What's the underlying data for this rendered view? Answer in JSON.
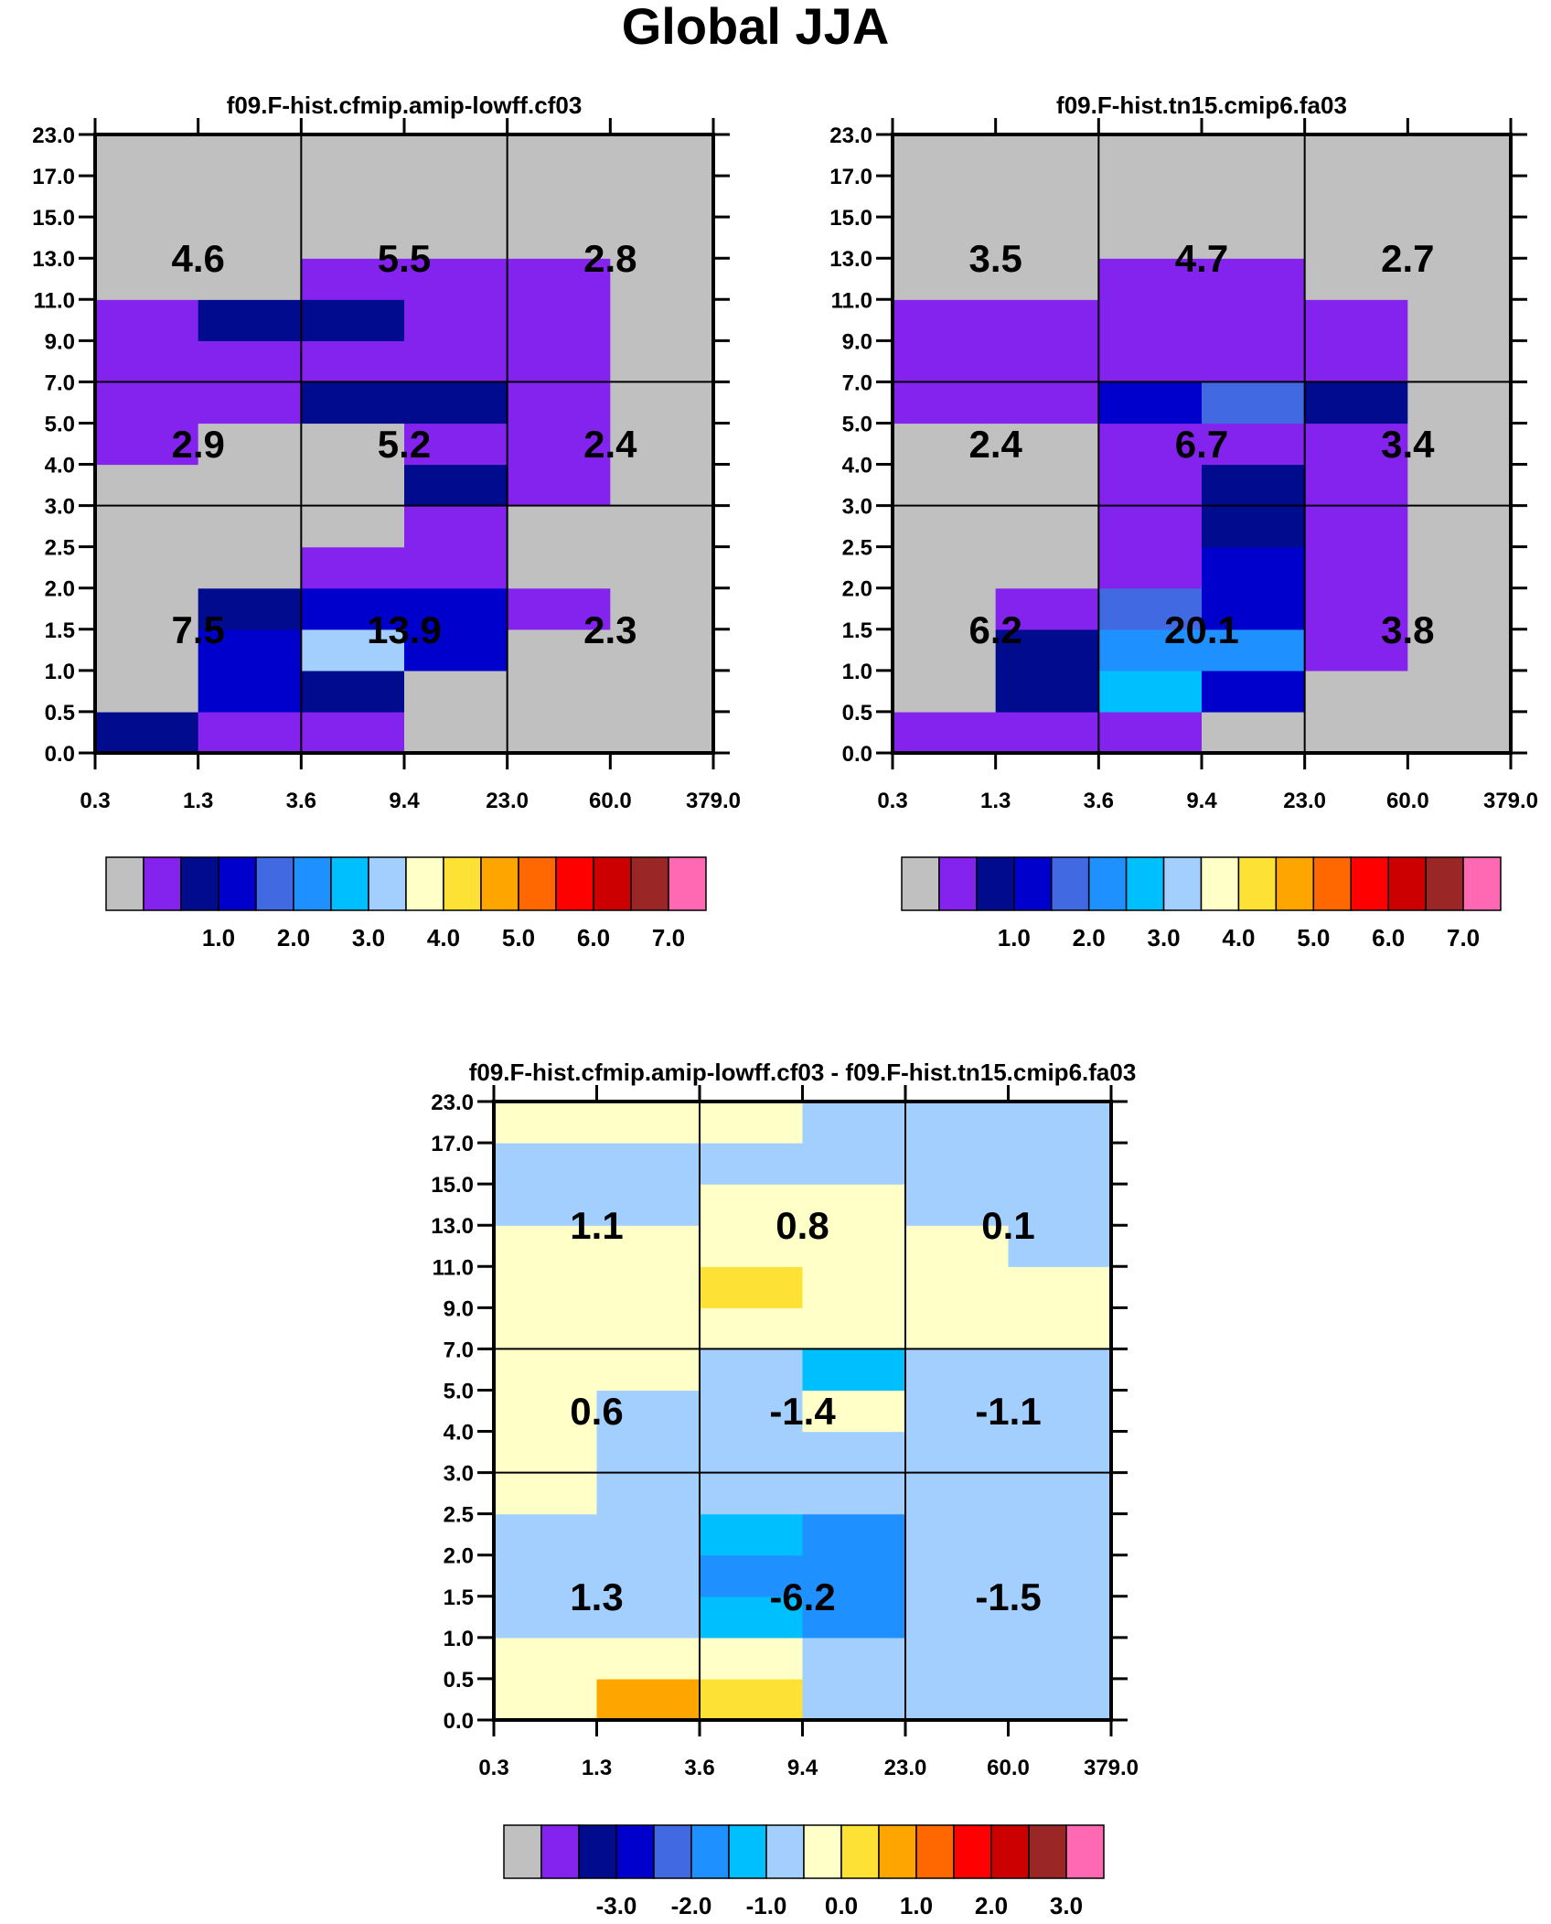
{
  "title": "Global JJA",
  "colorbar_colors": [
    "#c0c0c0",
    "#8422ee",
    "#000b8e",
    "#0000cd",
    "#4169e1",
    "#1e90ff",
    "#00bfff",
    "#a3cfff",
    "#ffffc8",
    "#fde235",
    "#ffa500",
    "#ff6700",
    "#ff0000",
    "#cd0000",
    "#9b2626",
    "#ff69b4"
  ],
  "chart_data": [
    {
      "type": "heatmap",
      "title": "f09.F-hist.cfmip.amip-lowff.cf03",
      "xticklabels": [
        "0.3",
        "1.3",
        "3.6",
        "9.4",
        "23.0",
        "60.0",
        "379.0"
      ],
      "yticklabels": [
        "0.0",
        "0.5",
        "1.0",
        "1.5",
        "2.0",
        "2.5",
        "3.0",
        "4.0",
        "5.0",
        "7.0",
        "9.0",
        "11.0",
        "13.0",
        "15.0",
        "17.0",
        "23.0"
      ],
      "grid": true,
      "cells": [
        [
          2,
          1,
          1,
          0,
          0,
          0
        ],
        [
          0,
          3,
          2,
          0,
          0,
          0
        ],
        [
          0,
          3,
          7,
          3,
          0,
          0
        ],
        [
          0,
          2,
          3,
          3,
          1,
          0
        ],
        [
          0,
          0,
          1,
          1,
          0,
          0
        ],
        [
          0,
          0,
          0,
          1,
          0,
          0
        ],
        [
          0,
          0,
          0,
          2,
          1,
          0
        ],
        [
          1,
          0,
          0,
          1,
          1,
          0
        ],
        [
          1,
          1,
          2,
          2,
          1,
          0
        ],
        [
          1,
          1,
          1,
          1,
          1,
          0
        ],
        [
          1,
          2,
          2,
          1,
          1,
          0
        ],
        [
          0,
          0,
          1,
          1,
          1,
          0
        ],
        [
          0,
          0,
          0,
          0,
          0,
          0
        ],
        [
          0,
          0,
          0,
          0,
          0,
          0
        ],
        [
          0,
          0,
          0,
          0,
          0,
          0
        ]
      ],
      "bin_labels": [
        "7.5",
        "13.9",
        "2.3",
        "2.9",
        "5.2",
        "2.4",
        "4.6",
        "5.5",
        "2.8"
      ],
      "colorbar": {
        "labels": [
          "1.0",
          "2.0",
          "3.0",
          "4.0",
          "5.0",
          "6.0",
          "7.0"
        ]
      }
    },
    {
      "type": "heatmap",
      "title": "f09.F-hist.tn15.cmip6.fa03",
      "xticklabels": [
        "0.3",
        "1.3",
        "3.6",
        "9.4",
        "23.0",
        "60.0",
        "379.0"
      ],
      "yticklabels": [
        "0.0",
        "0.5",
        "1.0",
        "1.5",
        "2.0",
        "2.5",
        "3.0",
        "4.0",
        "5.0",
        "7.0",
        "9.0",
        "11.0",
        "13.0",
        "15.0",
        "17.0",
        "23.0"
      ],
      "grid": true,
      "cells": [
        [
          1,
          1,
          1,
          0,
          0,
          0
        ],
        [
          0,
          2,
          6,
          3,
          0,
          0
        ],
        [
          0,
          2,
          5,
          5,
          1,
          0
        ],
        [
          0,
          1,
          4,
          3,
          1,
          0
        ],
        [
          0,
          0,
          1,
          3,
          1,
          0
        ],
        [
          0,
          0,
          1,
          2,
          1,
          0
        ],
        [
          0,
          0,
          1,
          2,
          1,
          0
        ],
        [
          0,
          0,
          1,
          1,
          1,
          0
        ],
        [
          1,
          1,
          3,
          4,
          2,
          0
        ],
        [
          1,
          1,
          1,
          1,
          1,
          0
        ],
        [
          1,
          1,
          1,
          1,
          1,
          0
        ],
        [
          0,
          0,
          1,
          1,
          0,
          0
        ],
        [
          0,
          0,
          0,
          0,
          0,
          0
        ],
        [
          0,
          0,
          0,
          0,
          0,
          0
        ],
        [
          0,
          0,
          0,
          0,
          0,
          0
        ]
      ],
      "bin_labels": [
        "6.2",
        "20.1",
        "3.8",
        "2.4",
        "6.7",
        "3.4",
        "3.5",
        "4.7",
        "2.7"
      ],
      "colorbar": {
        "labels": [
          "1.0",
          "2.0",
          "3.0",
          "4.0",
          "5.0",
          "6.0",
          "7.0"
        ]
      }
    },
    {
      "type": "heatmap",
      "title": "f09.F-hist.cfmip.amip-lowff.cf03 - f09.F-hist.tn15.cmip6.fa03",
      "xticklabels": [
        "0.3",
        "1.3",
        "3.6",
        "9.4",
        "23.0",
        "60.0",
        "379.0"
      ],
      "yticklabels": [
        "0.0",
        "0.5",
        "1.0",
        "1.5",
        "2.0",
        "2.5",
        "3.0",
        "4.0",
        "5.0",
        "7.0",
        "9.0",
        "11.0",
        "13.0",
        "15.0",
        "17.0",
        "23.0"
      ],
      "grid": true,
      "cells": [
        [
          8,
          10,
          9,
          7,
          7,
          7
        ],
        [
          8,
          8,
          8,
          7,
          7,
          7
        ],
        [
          7,
          7,
          6,
          5,
          7,
          7
        ],
        [
          7,
          7,
          5,
          5,
          7,
          7
        ],
        [
          7,
          7,
          6,
          5,
          7,
          7
        ],
        [
          8,
          7,
          7,
          7,
          7,
          7
        ],
        [
          8,
          7,
          7,
          7,
          7,
          7
        ],
        [
          8,
          7,
          7,
          8,
          7,
          7
        ],
        [
          8,
          8,
          7,
          6,
          7,
          7
        ],
        [
          8,
          8,
          8,
          8,
          8,
          8
        ],
        [
          8,
          8,
          9,
          8,
          8,
          8
        ],
        [
          8,
          8,
          8,
          8,
          8,
          7
        ],
        [
          7,
          7,
          8,
          8,
          7,
          7
        ],
        [
          7,
          7,
          7,
          7,
          7,
          7
        ],
        [
          8,
          8,
          8,
          7,
          7,
          7
        ]
      ],
      "bin_labels": [
        "1.3",
        "-6.2",
        "-1.5",
        "0.6",
        "-1.4",
        "-1.1",
        "1.1",
        "0.8",
        "0.1"
      ],
      "colorbar": {
        "labels": [
          "-3.0",
          "-2.0",
          "-1.0",
          "0.0",
          "1.0",
          "2.0",
          "3.0"
        ]
      }
    }
  ]
}
